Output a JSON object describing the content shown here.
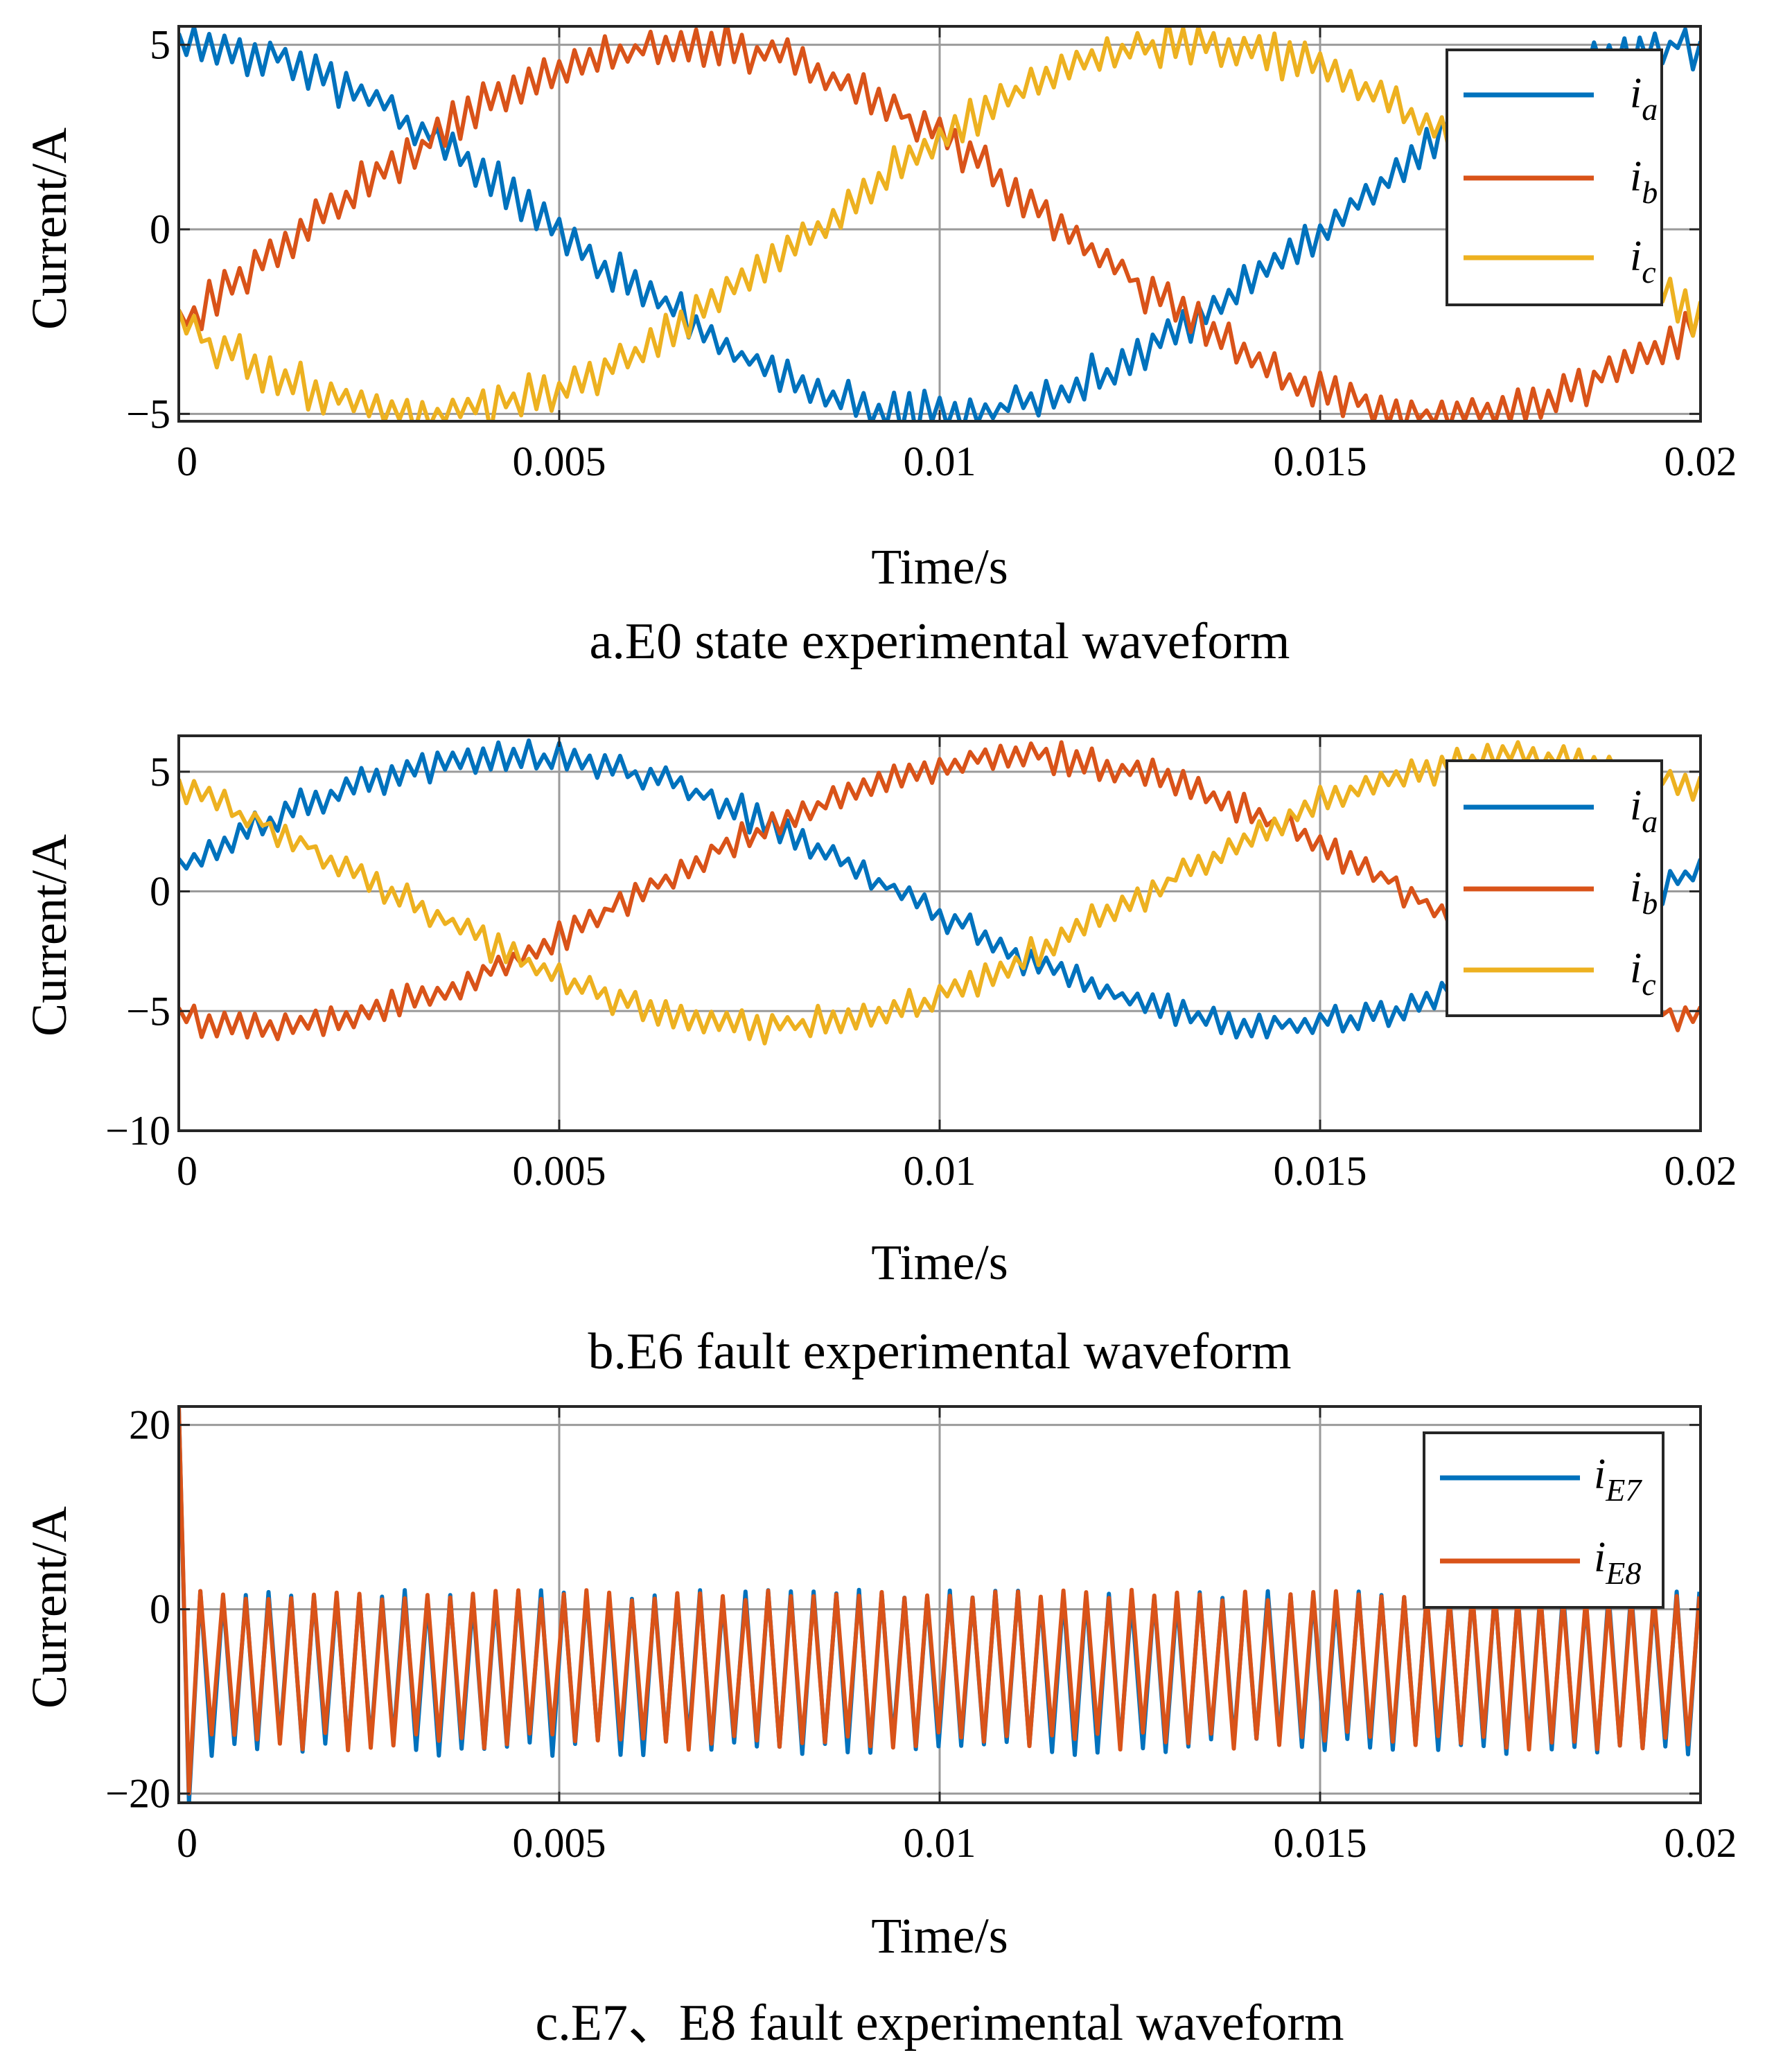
{
  "chart_data": [
    {
      "type": "line",
      "caption": "a.E0 state experimental waveform",
      "xlabel": "Time/s",
      "ylabel": "Current/A",
      "xlim": [
        0,
        0.02
      ],
      "ylim": [
        -5.2,
        5.5
      ],
      "xticks": [
        0,
        0.005,
        0.01,
        0.015,
        0.02
      ],
      "xtick_labels": [
        "0",
        "0.005",
        "0.01",
        "0.015",
        "0.02"
      ],
      "yticks": [
        -5,
        0,
        5
      ],
      "ytick_labels": [
        "−5",
        "0",
        "5"
      ],
      "grid": true,
      "legend_position": "top-right",
      "series": [
        {
          "name": "ia",
          "legend_main": "i",
          "legend_sub": "a",
          "color": "#0072BD",
          "amplitude": 5.0,
          "phase_deg": 90,
          "ripple": 0.35
        },
        {
          "name": "ib",
          "legend_main": "i",
          "legend_sub": "b",
          "color": "#D95319",
          "amplitude": 5.0,
          "phase_deg": -30,
          "ripple": 0.35
        },
        {
          "name": "ic",
          "legend_main": "i",
          "legend_sub": "c",
          "color": "#EDB120",
          "amplitude": 5.0,
          "phase_deg": -150,
          "ripple": 0.35
        }
      ]
    },
    {
      "type": "line",
      "caption": "b.E6 fault experimental waveform",
      "xlabel": "Time/s",
      "ylabel": "Current/A",
      "xlim": [
        0,
        0.02
      ],
      "ylim": [
        -10,
        6.5
      ],
      "xticks": [
        0,
        0.005,
        0.01,
        0.015,
        0.02
      ],
      "xtick_labels": [
        "0",
        "0.005",
        "0.01",
        "0.015",
        "0.02"
      ],
      "yticks": [
        -10,
        -5,
        0,
        5
      ],
      "ytick_labels": [
        "−10",
        "−5",
        "0",
        "5"
      ],
      "grid": true,
      "legend_position": "top-right",
      "series": [
        {
          "name": "ia",
          "legend_main": "i",
          "legend_sub": "a",
          "color": "#0072BD",
          "amplitude": 5.6,
          "phase_deg": 10,
          "ripple": 0.4
        },
        {
          "name": "ib",
          "legend_main": "i",
          "legend_sub": "b",
          "color": "#D95319",
          "amplitude": 5.6,
          "phase_deg": -110,
          "ripple": 0.4
        },
        {
          "name": "ic",
          "legend_main": "i",
          "legend_sub": "c",
          "color": "#EDB120",
          "amplitude": 5.6,
          "phase_deg": 130,
          "ripple": 0.4
        }
      ]
    },
    {
      "type": "line",
      "caption": "c.E7、E8 fault experimental waveform",
      "xlabel": "Time/s",
      "ylabel": "Current/A",
      "xlim": [
        0,
        0.02
      ],
      "ylim": [
        -21,
        22
      ],
      "xticks": [
        0,
        0.005,
        0.01,
        0.015,
        0.02
      ],
      "xtick_labels": [
        "0",
        "0.005",
        "0.01",
        "0.015",
        "0.02"
      ],
      "yticks": [
        -20,
        0,
        20
      ],
      "ytick_labels": [
        "−20",
        "0",
        "20"
      ],
      "grid": true,
      "legend_position": "top-right",
      "series": [
        {
          "name": "iE7",
          "legend_main": "i",
          "legend_sub": "E7",
          "color": "#0072BD",
          "high": 1.5,
          "low": -15,
          "start_peak": 22,
          "start_trough": -21,
          "cycles": 67
        },
        {
          "name": "iE8",
          "legend_main": "i",
          "legend_sub": "E8",
          "color": "#D95319",
          "high": 1.5,
          "low": -14.3,
          "start_peak": 22,
          "start_trough": -20,
          "cycles": 67
        }
      ]
    }
  ]
}
